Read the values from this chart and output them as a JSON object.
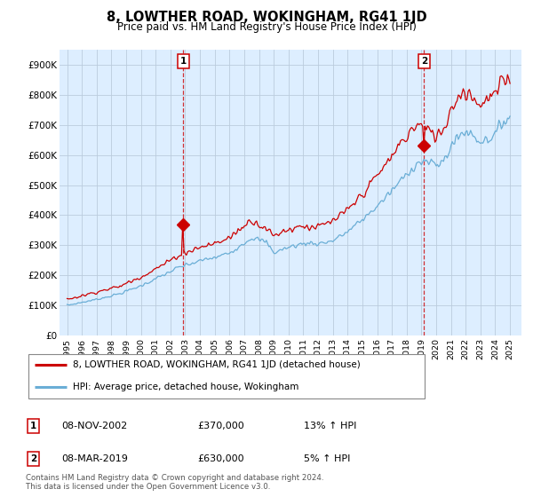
{
  "title": "8, LOWTHER ROAD, WOKINGHAM, RG41 1JD",
  "subtitle": "Price paid vs. HM Land Registry's House Price Index (HPI)",
  "ylabel_ticks": [
    "£0",
    "£100K",
    "£200K",
    "£300K",
    "£400K",
    "£500K",
    "£600K",
    "£700K",
    "£800K",
    "£900K"
  ],
  "ytick_values": [
    0,
    100000,
    200000,
    300000,
    400000,
    500000,
    600000,
    700000,
    800000,
    900000
  ],
  "ylim": [
    0,
    950000
  ],
  "sale1": {
    "date_num": 2002.86,
    "price": 370000,
    "label": "1",
    "date_str": "08-NOV-2002",
    "pct": "13% ↑ HPI"
  },
  "sale2": {
    "date_num": 2019.18,
    "price": 630000,
    "label": "2",
    "date_str": "08-MAR-2019",
    "pct": "5% ↑ HPI"
  },
  "hpi_line_color": "#6aaed6",
  "price_line_color": "#cc0000",
  "vline_color": "#cc0000",
  "chart_bg_color": "#ddeeff",
  "background_color": "#ffffff",
  "legend_label_price": "8, LOWTHER ROAD, WOKINGHAM, RG41 1JD (detached house)",
  "legend_label_hpi": "HPI: Average price, detached house, Wokingham",
  "footnote": "Contains HM Land Registry data © Crown copyright and database right 2024.\nThis data is licensed under the Open Government Licence v3.0.",
  "table_rows": [
    [
      "1",
      "08-NOV-2002",
      "£370,000",
      "13% ↑ HPI"
    ],
    [
      "2",
      "08-MAR-2019",
      "£630,000",
      "5% ↑ HPI"
    ]
  ],
  "xlim_left": 1994.5,
  "xlim_right": 2025.8
}
